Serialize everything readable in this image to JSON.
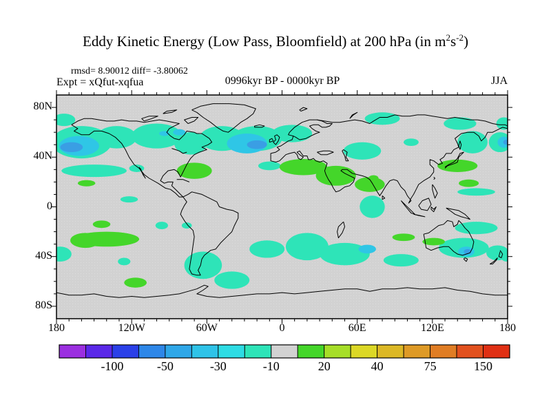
{
  "header": {
    "title": {
      "pre": "Eddy Kinetic Energy (Low Pass, Bloomfield) at 200 hPa (in m",
      "sup1": "2",
      "mid": "s",
      "sup2": "-2",
      "post": ")"
    },
    "stats": "rmsd= 8.90012 diff= -3.80062",
    "expt": "Expt = xQfut-xqfua",
    "period": "0996kyr BP - 0000kyr BP",
    "season": "JJA"
  },
  "chart_data": {
    "type": "heatmap",
    "title": "Eddy Kinetic Energy (Low Pass, Bloomfield) at 200 hPa (in m2 s-2)",
    "subtitle": "0996kyr BP - 0000kyr BP, JJA, Expt = xQfut-xqfua",
    "stats": {
      "rmsd": 8.90012,
      "diff": -3.80062
    },
    "projection": "equirectangular world map, lon -180..180, lat 90N..90S",
    "grid": false,
    "background_value_color": "#d2d2d2",
    "contour_levels": [
      -150,
      -100,
      -75,
      -50,
      -40,
      -30,
      -20,
      -10,
      10,
      20,
      30,
      40,
      50,
      75,
      100,
      150
    ],
    "colorbar_colors": [
      "#9b2fe0",
      "#5a28e8",
      "#2b40e8",
      "#2e87e8",
      "#2fa7e8",
      "#2fc3e8",
      "#2edce4",
      "#2ee4b8",
      "#d2d2d2",
      "#44d62a",
      "#a6de28",
      "#dcd826",
      "#dcb826",
      "#de9a26",
      "#e07d24",
      "#e2511e",
      "#e03014"
    ],
    "colorbar_labels": [
      {
        "t": "-100",
        "k": 2
      },
      {
        "t": "-50",
        "k": 4
      },
      {
        "t": "-30",
        "k": 6
      },
      {
        "t": "-10",
        "k": 8
      },
      {
        "t": "20",
        "k": 10
      },
      {
        "t": "40",
        "k": 12
      },
      {
        "t": "75",
        "k": 14
      },
      {
        "t": "150",
        "k": 16
      }
    ],
    "xaxis": {
      "labels": [
        {
          "t": "180",
          "lon": -180
        },
        {
          "t": "120W",
          "lon": -120
        },
        {
          "t": "60W",
          "lon": -60
        },
        {
          "t": "0",
          "lon": 0
        },
        {
          "t": "60E",
          "lon": 60
        },
        {
          "t": "120E",
          "lon": 120
        },
        {
          "t": "180",
          "lon": 180
        }
      ],
      "minor_tick_step_deg": 10,
      "major_tick_step_deg": 60
    },
    "yaxis": {
      "labels": [
        {
          "t": "80N",
          "lat": 80
        },
        {
          "t": "40N",
          "lat": 40
        },
        {
          "t": "0",
          "lat": 0
        },
        {
          "t": "40S",
          "lat": -40
        },
        {
          "t": "80S",
          "lat": -80
        }
      ],
      "minor_tick_step_deg": 10,
      "major_tick_step_deg": 40
    },
    "anomaly_regions": [
      {
        "band": "-20..-10",
        "color": "#2ee4b8",
        "ellipses": [
          [
            -160,
            52,
            24,
            13
          ],
          [
            -132,
            56,
            16,
            9
          ],
          [
            -100,
            57,
            20,
            10
          ],
          [
            -73,
            51,
            13,
            9
          ],
          [
            -48,
            55,
            18,
            10
          ],
          [
            -20,
            55,
            20,
            10
          ],
          [
            8,
            59,
            16,
            7
          ],
          [
            -150,
            29,
            26,
            5
          ],
          [
            -116,
            31,
            6,
            3
          ],
          [
            -122,
            6,
            7,
            2.5
          ],
          [
            -10,
            33,
            9,
            3.5
          ],
          [
            64,
            45,
            15,
            7
          ],
          [
            103,
            52,
            6,
            3
          ],
          [
            80,
            71,
            14,
            5
          ],
          [
            142,
            67,
            13,
            5
          ],
          [
            -174,
            70,
            9,
            5
          ],
          [
            177,
            67,
            6,
            5
          ],
          [
            152,
            52,
            12,
            9
          ],
          [
            174,
            52,
            9,
            8
          ],
          [
            155,
            12,
            15,
            3
          ],
          [
            72,
            0,
            10,
            9
          ],
          [
            -177,
            -38,
            9,
            6
          ],
          [
            -96,
            -15,
            5,
            3
          ],
          [
            -76,
            -15,
            4,
            2.5
          ],
          [
            -126,
            -44,
            5,
            3
          ],
          [
            -63,
            -47,
            15,
            11
          ],
          [
            -40,
            -59,
            14,
            7
          ],
          [
            -12,
            -34,
            14,
            7
          ],
          [
            20,
            -32,
            17,
            11
          ],
          [
            50,
            -38,
            20,
            9
          ],
          [
            95,
            -43,
            14,
            5
          ],
          [
            145,
            -33,
            20,
            8
          ],
          [
            172,
            -37,
            9,
            6
          ],
          [
            179,
            -39,
            5,
            5
          ],
          [
            155,
            -17,
            17,
            5
          ]
        ]
      },
      {
        "band": "-30..-20",
        "color": "#2fc6e6",
        "ellipses": [
          [
            -162,
            49,
            16,
            8
          ],
          [
            -28,
            51,
            16,
            8
          ],
          [
            -82,
            60,
            5,
            2.5
          ],
          [
            -94,
            59,
            4,
            2
          ],
          [
            177,
            52,
            5,
            4.5
          ],
          [
            68,
            -34,
            7,
            3.5
          ],
          [
            147,
            -36,
            6.5,
            4
          ]
        ]
      },
      {
        "band": "-40..-30",
        "color": "#3a9ee4",
        "ellipses": [
          [
            -168,
            48,
            9,
            4
          ],
          [
            -20,
            50,
            8,
            3.5
          ],
          [
            179,
            52,
            2.5,
            2
          ],
          [
            148,
            -36,
            3,
            2
          ]
        ]
      },
      {
        "band": "10..20",
        "color": "#44d62a",
        "ellipses": [
          [
            -70,
            29,
            14,
            6.5
          ],
          [
            17,
            32,
            19,
            6.5
          ],
          [
            43,
            25,
            16,
            8
          ],
          [
            70,
            18,
            12,
            6
          ],
          [
            73,
            23,
            4,
            2.5
          ],
          [
            140,
            33,
            16,
            5
          ],
          [
            149,
            19,
            8,
            3
          ],
          [
            -156,
            19,
            7,
            2.5
          ],
          [
            -140,
            -26,
            26,
            6
          ],
          [
            -157,
            -27,
            12,
            6
          ],
          [
            -144,
            -14,
            7,
            3
          ],
          [
            -117,
            -61,
            9,
            4
          ],
          [
            97,
            -24.5,
            9,
            3
          ],
          [
            121,
            -28,
            9,
            3
          ]
        ]
      }
    ]
  }
}
